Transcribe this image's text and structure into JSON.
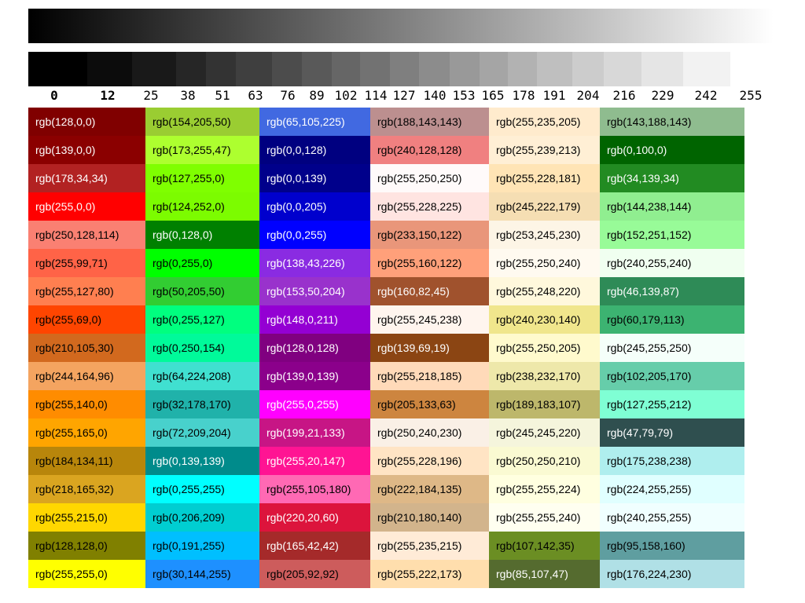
{
  "gray_levels": [
    0,
    12,
    25,
    38,
    51,
    63,
    76,
    89,
    102,
    114,
    127,
    140,
    153,
    165,
    178,
    191,
    204,
    216,
    229,
    242,
    255
  ],
  "gray_labels": [
    "0",
    "12",
    "25",
    "38",
    "51",
    "63",
    "76",
    "89",
    "102",
    "114",
    "127",
    "140",
    "153",
    "165",
    "178",
    "191",
    "204",
    "216",
    "229",
    "242",
    "255"
  ],
  "swatches": [
    [
      {
        "label": "rgb(128,0,0)",
        "color": "#800000"
      },
      {
        "label": "rgb(139,0,0)",
        "color": "#8b0000"
      },
      {
        "label": "rgb(178,34,34)",
        "color": "#b22222"
      },
      {
        "label": "rgb(255,0,0)",
        "color": "#ff0000"
      },
      {
        "label": "rgb(250,128,114)",
        "color": "#fa8072"
      },
      {
        "label": "rgb(255,99,71)",
        "color": "#ff6347"
      },
      {
        "label": "rgb(255,127,80)",
        "color": "#ff7f50"
      },
      {
        "label": "rgb(255,69,0)",
        "color": "#ff4500"
      },
      {
        "label": "rgb(210,105,30)",
        "color": "#d2691e"
      },
      {
        "label": "rgb(244,164,96)",
        "color": "#f4a460"
      },
      {
        "label": "rgb(255,140,0)",
        "color": "#ff8c00"
      },
      {
        "label": "rgb(255,165,0)",
        "color": "#ffa500"
      },
      {
        "label": "rgb(184,134,11)",
        "color": "#b8860b"
      },
      {
        "label": "rgb(218,165,32)",
        "color": "#daa520"
      },
      {
        "label": "rgb(255,215,0)",
        "color": "#ffd700"
      },
      {
        "label": "rgb(128,128,0)",
        "color": "#808000"
      },
      {
        "label": "rgb(255,255,0)",
        "color": "#ffff00"
      }
    ],
    [
      {
        "label": "rgb(154,205,50)",
        "color": "#9acd32"
      },
      {
        "label": "rgb(173,255,47)",
        "color": "#adff2f"
      },
      {
        "label": "rgb(127,255,0)",
        "color": "#7fff00"
      },
      {
        "label": "rgb(124,252,0)",
        "color": "#7cfc00"
      },
      {
        "label": "rgb(0,128,0)",
        "color": "#008000"
      },
      {
        "label": "rgb(0,255,0)",
        "color": "#00ff00"
      },
      {
        "label": "rgb(50,205,50)",
        "color": "#32cd32"
      },
      {
        "label": "rgb(0,255,127)",
        "color": "#00ff7f"
      },
      {
        "label": "rgb(0,250,154)",
        "color": "#00fa9a"
      },
      {
        "label": "rgb(64,224,208)",
        "color": "#40e0d0"
      },
      {
        "label": "rgb(32,178,170)",
        "color": "#20b2aa"
      },
      {
        "label": "rgb(72,209,204)",
        "color": "#48d1cc"
      },
      {
        "label": "rgb(0,139,139)",
        "color": "#008b8b"
      },
      {
        "label": "rgb(0,255,255)",
        "color": "#00ffff"
      },
      {
        "label": "rgb(0,206,209)",
        "color": "#00ced1"
      },
      {
        "label": "rgb(0,191,255)",
        "color": "#00bfff"
      },
      {
        "label": "rgb(30,144,255)",
        "color": "#1e90ff"
      }
    ],
    [
      {
        "label": "rgb(65,105,225)",
        "color": "#4169e1"
      },
      {
        "label": "rgb(0,0,128)",
        "color": "#000080"
      },
      {
        "label": "rgb(0,0,139)",
        "color": "#00008b"
      },
      {
        "label": "rgb(0,0,205)",
        "color": "#0000cd"
      },
      {
        "label": "rgb(0,0,255)",
        "color": "#0000ff"
      },
      {
        "label": "rgb(138,43,226)",
        "color": "#8a2be2"
      },
      {
        "label": "rgb(153,50,204)",
        "color": "#9932cc"
      },
      {
        "label": "rgb(148,0,211)",
        "color": "#9400d3"
      },
      {
        "label": "rgb(128,0,128)",
        "color": "#800080"
      },
      {
        "label": "rgb(139,0,139)",
        "color": "#8b008b"
      },
      {
        "label": "rgb(255,0,255)",
        "color": "#ff00ff"
      },
      {
        "label": "rgb(199,21,133)",
        "color": "#c71585"
      },
      {
        "label": "rgb(255,20,147)",
        "color": "#ff1493"
      },
      {
        "label": "rgb(255,105,180)",
        "color": "#ff69b4"
      },
      {
        "label": "rgb(220,20,60)",
        "color": "#dc143c"
      },
      {
        "label": "rgb(165,42,42)",
        "color": "#a52a2a"
      },
      {
        "label": "rgb(205,92,92)",
        "color": "#cd5c5c"
      }
    ],
    [
      {
        "label": "rgb(188,143,143)",
        "color": "#bc8f8f"
      },
      {
        "label": "rgb(240,128,128)",
        "color": "#f08080"
      },
      {
        "label": "rgb(255,250,250)",
        "color": "#fffafa"
      },
      {
        "label": "rgb(255,228,225)",
        "color": "#ffe4e1"
      },
      {
        "label": "rgb(233,150,122)",
        "color": "#e9967a"
      },
      {
        "label": "rgb(255,160,122)",
        "color": "#ffa07a"
      },
      {
        "label": "rgb(160,82,45)",
        "color": "#a0522d"
      },
      {
        "label": "rgb(255,245,238)",
        "color": "#fff5ee"
      },
      {
        "label": "rgb(139,69,19)",
        "color": "#8b4513"
      },
      {
        "label": "rgb(255,218,185)",
        "color": "#ffdab9"
      },
      {
        "label": "rgb(205,133,63)",
        "color": "#cd853f"
      },
      {
        "label": "rgb(250,240,230)",
        "color": "#faf0e6"
      },
      {
        "label": "rgb(255,228,196)",
        "color": "#ffe4c4"
      },
      {
        "label": "rgb(222,184,135)",
        "color": "#deb887"
      },
      {
        "label": "rgb(210,180,140)",
        "color": "#d2b48c"
      },
      {
        "label": "rgb(255,235,215)",
        "color": "#ffebd7"
      },
      {
        "label": "rgb(255,222,173)",
        "color": "#ffdead"
      }
    ],
    [
      {
        "label": "rgb(255,235,205)",
        "color": "#ffebcd"
      },
      {
        "label": "rgb(255,239,213)",
        "color": "#ffefd5"
      },
      {
        "label": "rgb(255,228,181)",
        "color": "#ffe4b5"
      },
      {
        "label": "rgb(245,222,179)",
        "color": "#f5deb3"
      },
      {
        "label": "rgb(253,245,230)",
        "color": "#fdf5e6"
      },
      {
        "label": "rgb(255,250,240)",
        "color": "#fffaf0"
      },
      {
        "label": "rgb(255,248,220)",
        "color": "#fff8dc"
      },
      {
        "label": "rgb(240,230,140)",
        "color": "#f0e68c"
      },
      {
        "label": "rgb(255,250,205)",
        "color": "#fffacd"
      },
      {
        "label": "rgb(238,232,170)",
        "color": "#eee8aa"
      },
      {
        "label": "rgb(189,183,107)",
        "color": "#bdb76b"
      },
      {
        "label": "rgb(245,245,220)",
        "color": "#f5f5dc"
      },
      {
        "label": "rgb(250,250,210)",
        "color": "#fafad2"
      },
      {
        "label": "rgb(255,255,224)",
        "color": "#ffffe0"
      },
      {
        "label": "rgb(255,255,240)",
        "color": "#fffff0"
      },
      {
        "label": "rgb(107,142,35)",
        "color": "#6b8e23"
      },
      {
        "label": "rgb(85,107,47)",
        "color": "#556b2f"
      }
    ],
    [
      {
        "label": "rgb(143,188,143)",
        "color": "#8fbc8f"
      },
      {
        "label": "rgb(0,100,0)",
        "color": "#006400"
      },
      {
        "label": "rgb(34,139,34)",
        "color": "#228b22"
      },
      {
        "label": "rgb(144,238,144)",
        "color": "#90ee90"
      },
      {
        "label": "rgb(152,251,152)",
        "color": "#98fb98"
      },
      {
        "label": "rgb(240,255,240)",
        "color": "#f0fff0"
      },
      {
        "label": "rgb(46,139,87)",
        "color": "#2e8b57"
      },
      {
        "label": "rgb(60,179,113)",
        "color": "#3cb371"
      },
      {
        "label": "rgb(245,255,250)",
        "color": "#f5fffa"
      },
      {
        "label": "rgb(102,205,170)",
        "color": "#66cdaa"
      },
      {
        "label": "rgb(127,255,212)",
        "color": "#7fffd4"
      },
      {
        "label": "rgb(47,79,79)",
        "color": "#2f4f4f"
      },
      {
        "label": "rgb(175,238,238)",
        "color": "#afeeee"
      },
      {
        "label": "rgb(224,255,255)",
        "color": "#e0ffff"
      },
      {
        "label": "rgb(240,255,255)",
        "color": "#f0ffff"
      },
      {
        "label": "rgb(95,158,160)",
        "color": "#5f9ea0"
      },
      {
        "label": "rgb(176,224,230)",
        "color": "#b0e0e6"
      }
    ]
  ]
}
